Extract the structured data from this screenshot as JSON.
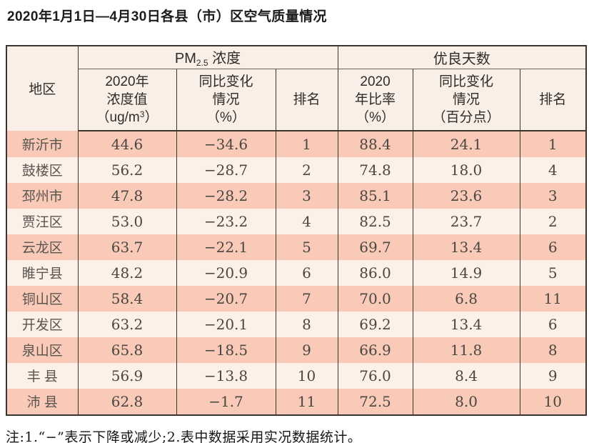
{
  "page": {
    "title": "2020年1月1日—4月30日各县（市）区空气质量情况",
    "footnote": "注:1.“−”表示下降或减少;2.表中数据采用实况数据统计。"
  },
  "colors": {
    "row_salmon": "#f8cab7",
    "row_light": "#fdf0e6",
    "header_bg": "#faefe7",
    "border_dark": "#3a352f"
  },
  "header_display": {
    "region": "地区",
    "pm_group": {
      "prefix": "PM",
      "sub": "2.5",
      "suffix": " 浓度"
    },
    "gd_group": "优良天数",
    "pm_value": {
      "l1": "2020年",
      "l2": "浓度值",
      "unit_pre": "（ug/m",
      "unit_sup": "3",
      "unit_post": "）"
    },
    "pm_change": {
      "l1": "同比变化",
      "l2": "情况",
      "l3": "（%）"
    },
    "pm_rank": "排名",
    "gd_ratio": {
      "l1": "2020",
      "l2": "年比率",
      "l3": "（%）"
    },
    "gd_change": {
      "l1": "同比变化",
      "l2": "情况",
      "l3": "（百分点）"
    },
    "gd_rank": "排名"
  },
  "chart_data": {
    "type": "table",
    "title": "2020年1月1日—4月30日各县（市）区空气质量情况",
    "column_groups": [
      {
        "label": "地区",
        "span": 1
      },
      {
        "label": "PM2.5浓度",
        "span": 3
      },
      {
        "label": "优良天数",
        "span": 3
      }
    ],
    "columns": [
      "地区",
      "2020年浓度值（ug/m3）",
      "同比变化情况（%）",
      "排名",
      "2020年比率（%）",
      "同比变化情况（百分点）",
      "排名"
    ],
    "rows": [
      [
        "新沂市",
        "44.6",
        "−34.6",
        "1",
        "88.4",
        "24.1",
        "1"
      ],
      [
        "鼓楼区",
        "56.2",
        "−28.7",
        "2",
        "74.8",
        "18.0",
        "4"
      ],
      [
        "邳州市",
        "47.8",
        "−28.2",
        "3",
        "85.1",
        "23.6",
        "3"
      ],
      [
        "贾汪区",
        "53.0",
        "−23.2",
        "4",
        "82.5",
        "23.7",
        "2"
      ],
      [
        "云龙区",
        "63.7",
        "−22.1",
        "5",
        "69.7",
        "13.4",
        "6"
      ],
      [
        "睢宁县",
        "48.2",
        "−20.9",
        "6",
        "86.0",
        "14.9",
        "5"
      ],
      [
        "铜山区",
        "58.4",
        "−20.7",
        "7",
        "70.0",
        "6.8",
        "11"
      ],
      [
        "开发区",
        "63.2",
        "−20.1",
        "8",
        "69.2",
        "13.4",
        "6"
      ],
      [
        "泉山区",
        "65.8",
        "−18.5",
        "9",
        "66.9",
        "11.8",
        "8"
      ],
      [
        "丰 县",
        "56.9",
        "−13.8",
        "10",
        "76.0",
        "8.4",
        "9"
      ],
      [
        "沛 县",
        "62.8",
        "−1.7",
        "11",
        "72.5",
        "8.0",
        "10"
      ]
    ]
  }
}
